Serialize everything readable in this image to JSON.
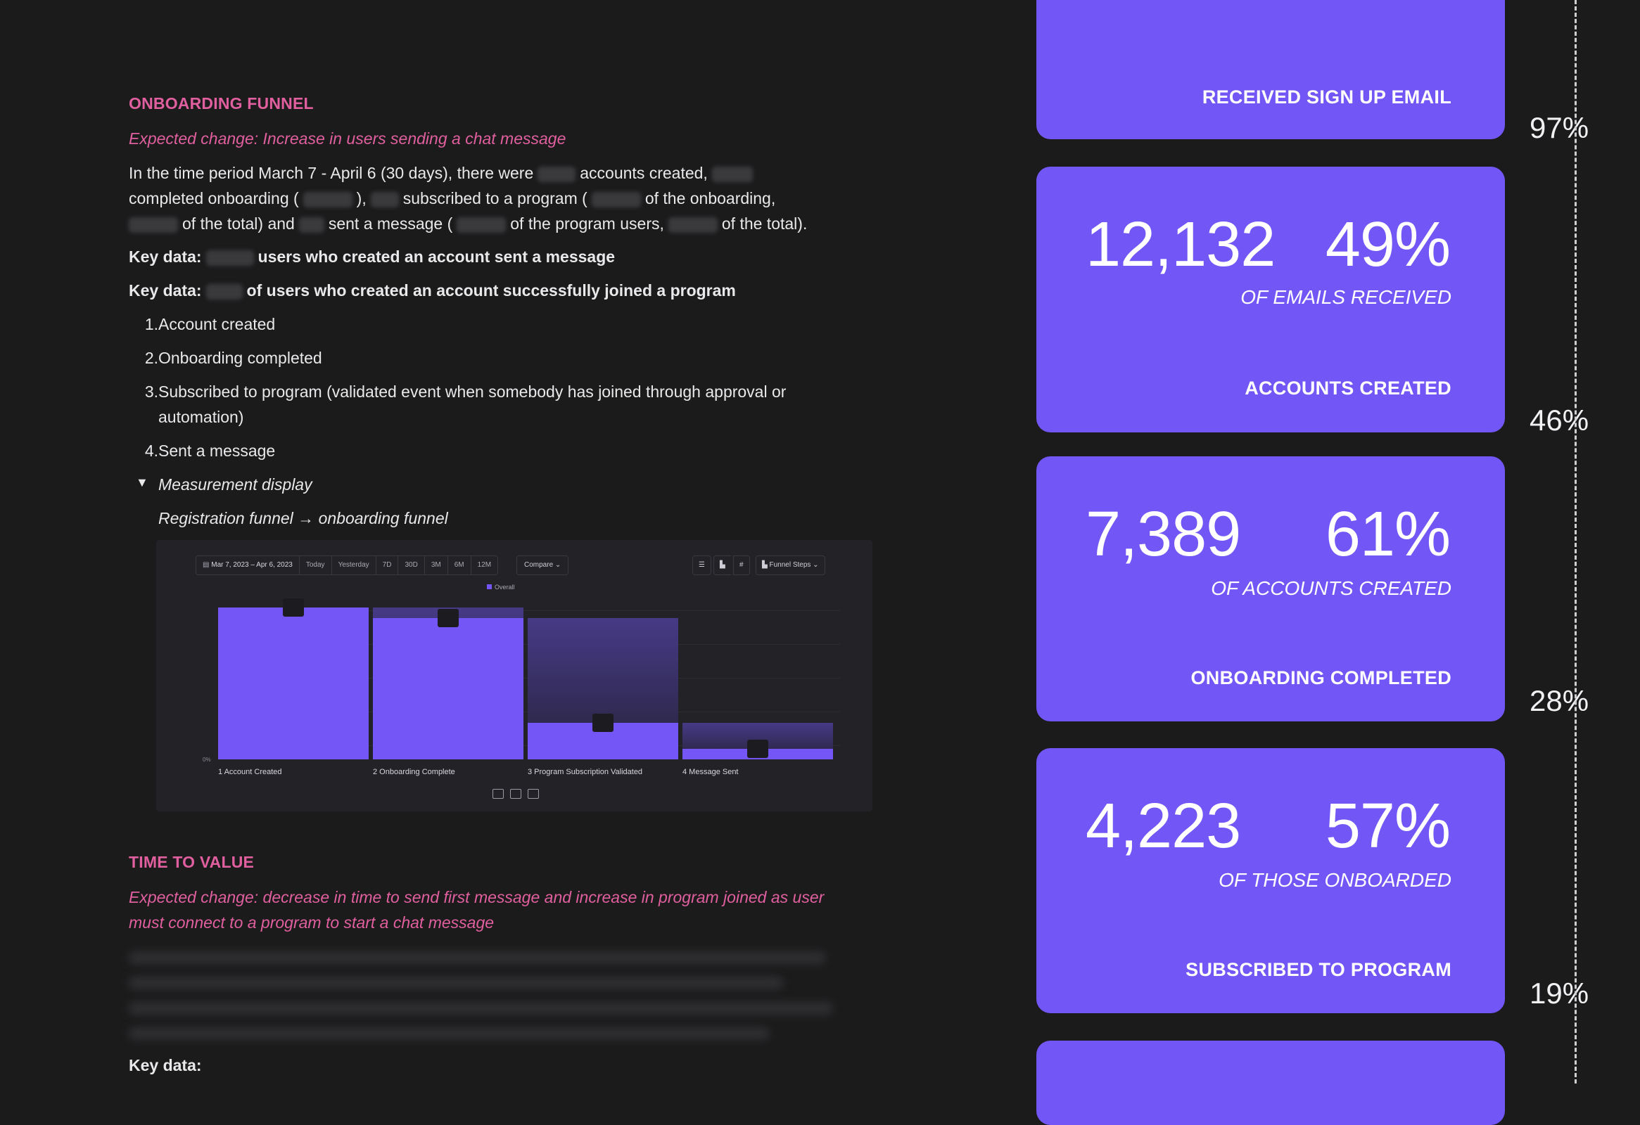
{
  "onboarding": {
    "heading": "ONBOARDING FUNNEL",
    "expected": "Expected change: Increase in users sending a chat message",
    "para_l1_a": "In the time period March 7 - April 6 (30 days), there were",
    "para_l1_b": "accounts created,",
    "para_l2_a": "completed onboarding (",
    "para_l2_b": "),",
    "para_l2_c": "subscribed to a program (",
    "para_l2_d": "of the onboarding,",
    "para_l3_a": "of the total) and",
    "para_l3_b": "sent a message (",
    "para_l3_c": "of the program users,",
    "para_l3_d": "of the total).",
    "key1_label": "Key data:",
    "key1_text": "users who created an account sent a message",
    "key2_label": "Key data:",
    "key2_text": "of users who created an account successfully joined a program",
    "list": [
      {
        "num": "1.",
        "text": "Account created"
      },
      {
        "num": "2.",
        "text": "Onboarding completed"
      },
      {
        "num": "3.",
        "text": "Subscribed to program (validated event when somebody has joined through approval or automation)"
      },
      {
        "num": "4.",
        "text": "Sent a message"
      }
    ],
    "toggle_label": "Measurement display",
    "toggle_body": "Registration funnel → onboarding funnel"
  },
  "funnel_shot": {
    "date_range": "Mar 7, 2023 – Apr 6, 2023",
    "ranges": [
      "Today",
      "Yesterday",
      "7D",
      "30D",
      "3M",
      "6M",
      "12M"
    ],
    "compare": "Compare ⌄",
    "view": "Funnel Steps ⌄",
    "legend": "Overall",
    "zero_label": "0%",
    "steps": [
      {
        "label": "1  Account Created",
        "value": 100,
        "prev": 100
      },
      {
        "label": "2  Onboarding Complete",
        "value": 93,
        "prev": 100
      },
      {
        "label": "3  Program Subscription Validated",
        "value": 24,
        "prev": 93
      },
      {
        "label": "4  Message Sent",
        "value": 7,
        "prev": 24
      }
    ],
    "accent": "#7356f5"
  },
  "ttv": {
    "heading": "TIME TO VALUE",
    "expected_l1": "Expected change: decrease in time to send first message and increase in program joined as user",
    "expected_l2": "must connect to a program to start a chat message",
    "key_label": "Key data:"
  },
  "cards": [
    {
      "label": "RECEIVED SIGN UP EMAIL"
    },
    {
      "count": "12,132",
      "percent": "49%",
      "sub": "OF EMAILS RECEIVED",
      "label": "ACCOUNTS CREATED"
    },
    {
      "count": "7,389",
      "percent": "61%",
      "sub": "OF ACCOUNTS CREATED",
      "label": "ONBOARDING COMPLETED"
    },
    {
      "count": "4,223",
      "percent": "57%",
      "sub": "OF THOSE ONBOARDED",
      "label": "SUBSCRIBED TO PROGRAM"
    }
  ],
  "side_percents": [
    "97%",
    "46%",
    "28%",
    "19%"
  ],
  "card_color": "#7357f6"
}
